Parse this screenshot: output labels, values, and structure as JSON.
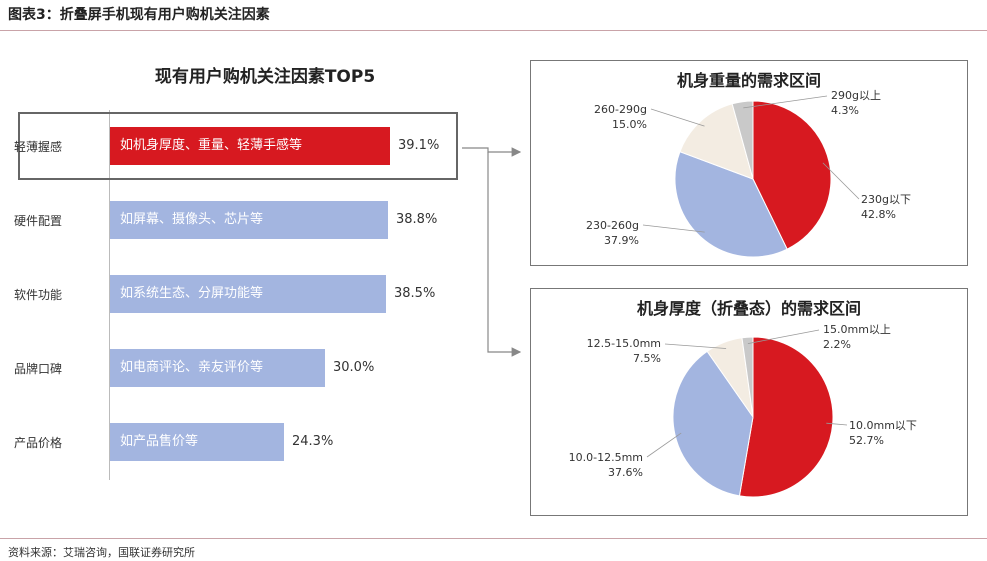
{
  "figure_title": "图表3：折叠屏手机现有用户购机关注因素",
  "source": "资料来源：艾瑞咨询，国联证券研究所",
  "colors": {
    "red": "#d71920",
    "blue": "#a3b5e0",
    "beige": "#f3ece2",
    "gray": "#c9c9c9"
  },
  "chart_data": [
    {
      "type": "bar",
      "title": "现有用户购机关注因素TOP5",
      "categories": [
        "轻薄握感",
        "硬件配置",
        "软件功能",
        "品牌口碑",
        "产品价格"
      ],
      "bar_texts": [
        "如机身厚度、重量、轻薄手感等",
        "如屏幕、摄像头、芯片等",
        "如系统生态、分屏功能等",
        "如电商评论、亲友评价等",
        "如产品售价等"
      ],
      "values": [
        39.1,
        38.8,
        38.5,
        30.0,
        24.3
      ],
      "value_labels": [
        "39.1%",
        "38.8%",
        "38.5%",
        "30.0%",
        "24.3%"
      ],
      "xlim": [
        0,
        40.5
      ],
      "highlight": "轻薄握感"
    },
    {
      "type": "pie",
      "title": "机身重量的需求区间",
      "labels": [
        "230g以下",
        "230-260g",
        "260-290g",
        "290g以上"
      ],
      "values": [
        42.8,
        37.9,
        15.0,
        4.3
      ],
      "value_labels": [
        "42.8%",
        "37.9%",
        "15.0%",
        "4.3%"
      ],
      "colors": [
        "#d71920",
        "#a3b5e0",
        "#f3ece2",
        "#c9c9c9"
      ]
    },
    {
      "type": "pie",
      "title": "机身厚度（折叠态）的需求区间",
      "labels": [
        "10.0mm以下",
        "10.0-12.5mm",
        "12.5-15.0mm",
        "15.0mm以上"
      ],
      "values": [
        52.7,
        37.6,
        7.5,
        2.2
      ],
      "value_labels": [
        "52.7%",
        "37.6%",
        "7.5%",
        "2.2%"
      ],
      "colors": [
        "#d71920",
        "#a3b5e0",
        "#f3ece2",
        "#c9c9c9"
      ]
    }
  ]
}
